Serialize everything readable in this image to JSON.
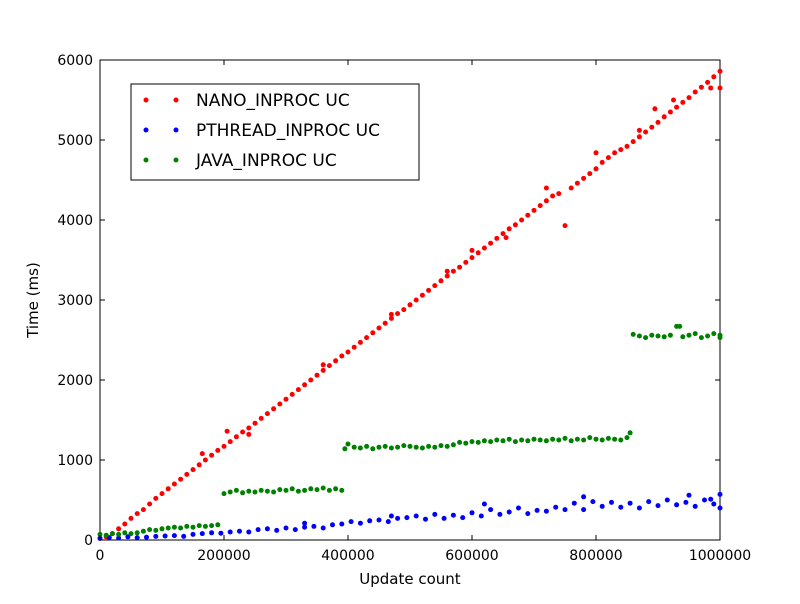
{
  "chart_data": {
    "type": "scatter",
    "xlabel": "Update count",
    "ylabel": "Time (ms)",
    "xlim": [
      0,
      1000000
    ],
    "ylim": [
      0,
      6000
    ],
    "xticks": [
      0,
      200000,
      400000,
      600000,
      800000,
      1000000
    ],
    "yticks": [
      0,
      1000,
      2000,
      3000,
      4000,
      5000,
      6000
    ],
    "xtick_labels": [
      "0",
      "200000",
      "400000",
      "600000",
      "800000",
      "1000000"
    ],
    "ytick_labels": [
      "0",
      "1000",
      "2000",
      "3000",
      "4000",
      "5000",
      "6000"
    ],
    "grid": false,
    "legend_position": "upper-left",
    "series": [
      {
        "name": "NANO_INPROC UC",
        "color": "#ff0000",
        "points": [
          [
            0,
            20
          ],
          [
            10000,
            40
          ],
          [
            20000,
            80
          ],
          [
            30000,
            140
          ],
          [
            40000,
            200
          ],
          [
            50000,
            270
          ],
          [
            60000,
            330
          ],
          [
            70000,
            380
          ],
          [
            80000,
            450
          ],
          [
            90000,
            520
          ],
          [
            100000,
            580
          ],
          [
            110000,
            640
          ],
          [
            120000,
            700
          ],
          [
            130000,
            760
          ],
          [
            140000,
            820
          ],
          [
            150000,
            880
          ],
          [
            160000,
            940
          ],
          [
            170000,
            1000
          ],
          [
            180000,
            1060
          ],
          [
            190000,
            1120
          ],
          [
            200000,
            1170
          ],
          [
            210000,
            1230
          ],
          [
            220000,
            1290
          ],
          [
            230000,
            1350
          ],
          [
            240000,
            1400
          ],
          [
            250000,
            1460
          ],
          [
            260000,
            1520
          ],
          [
            270000,
            1580
          ],
          [
            280000,
            1640
          ],
          [
            290000,
            1700
          ],
          [
            300000,
            1760
          ],
          [
            310000,
            1820
          ],
          [
            320000,
            1880
          ],
          [
            330000,
            1940
          ],
          [
            340000,
            2000
          ],
          [
            350000,
            2060
          ],
          [
            360000,
            2120
          ],
          [
            370000,
            2180
          ],
          [
            380000,
            2240
          ],
          [
            390000,
            2300
          ],
          [
            400000,
            2350
          ],
          [
            410000,
            2410
          ],
          [
            420000,
            2470
          ],
          [
            430000,
            2530
          ],
          [
            440000,
            2590
          ],
          [
            450000,
            2650
          ],
          [
            460000,
            2710
          ],
          [
            470000,
            2770
          ],
          [
            480000,
            2830
          ],
          [
            490000,
            2880
          ],
          [
            500000,
            2940
          ],
          [
            510000,
            3000
          ],
          [
            520000,
            3060
          ],
          [
            530000,
            3120
          ],
          [
            540000,
            3180
          ],
          [
            550000,
            3240
          ],
          [
            560000,
            3300
          ],
          [
            570000,
            3360
          ],
          [
            580000,
            3410
          ],
          [
            590000,
            3470
          ],
          [
            600000,
            3530
          ],
          [
            610000,
            3590
          ],
          [
            620000,
            3650
          ],
          [
            630000,
            3710
          ],
          [
            640000,
            3770
          ],
          [
            650000,
            3830
          ],
          [
            660000,
            3890
          ],
          [
            670000,
            3940
          ],
          [
            680000,
            4000
          ],
          [
            690000,
            4060
          ],
          [
            700000,
            4120
          ],
          [
            710000,
            4180
          ],
          [
            720000,
            4240
          ],
          [
            730000,
            4300
          ],
          [
            740000,
            4330
          ],
          [
            750000,
            3930
          ],
          [
            760000,
            4400
          ],
          [
            770000,
            4460
          ],
          [
            780000,
            4520
          ],
          [
            790000,
            4580
          ],
          [
            800000,
            4640
          ],
          [
            810000,
            4720
          ],
          [
            820000,
            4780
          ],
          [
            830000,
            4840
          ],
          [
            840000,
            4880
          ],
          [
            850000,
            4920
          ],
          [
            860000,
            4980
          ],
          [
            870000,
            5040
          ],
          [
            880000,
            5100
          ],
          [
            890000,
            5160
          ],
          [
            900000,
            5220
          ],
          [
            910000,
            5290
          ],
          [
            920000,
            5350
          ],
          [
            930000,
            5410
          ],
          [
            940000,
            5470
          ],
          [
            950000,
            5530
          ],
          [
            960000,
            5600
          ],
          [
            970000,
            5660
          ],
          [
            980000,
            5720
          ],
          [
            990000,
            5790
          ],
          [
            1000000,
            5860
          ],
          [
            1000000,
            5650
          ],
          [
            985000,
            5650
          ],
          [
            240000,
            1320
          ],
          [
            165000,
            1080
          ],
          [
            205000,
            1360
          ],
          [
            360000,
            2190
          ],
          [
            470000,
            2820
          ],
          [
            560000,
            3360
          ],
          [
            600000,
            3620
          ],
          [
            655000,
            3780
          ],
          [
            720000,
            4400
          ],
          [
            800000,
            4840
          ],
          [
            870000,
            5120
          ],
          [
            895000,
            5390
          ],
          [
            925000,
            5500
          ]
        ]
      },
      {
        "name": "PTHREAD_INPROC UC",
        "color": "#0000ff",
        "points": [
          [
            0,
            20
          ],
          [
            15000,
            30
          ],
          [
            30000,
            25
          ],
          [
            45000,
            40
          ],
          [
            60000,
            30
          ],
          [
            75000,
            35
          ],
          [
            90000,
            45
          ],
          [
            105000,
            50
          ],
          [
            120000,
            55
          ],
          [
            135000,
            45
          ],
          [
            150000,
            70
          ],
          [
            165000,
            80
          ],
          [
            180000,
            90
          ],
          [
            195000,
            85
          ],
          [
            210000,
            100
          ],
          [
            225000,
            110
          ],
          [
            240000,
            100
          ],
          [
            255000,
            130
          ],
          [
            270000,
            140
          ],
          [
            285000,
            120
          ],
          [
            300000,
            150
          ],
          [
            315000,
            130
          ],
          [
            330000,
            160
          ],
          [
            345000,
            170
          ],
          [
            360000,
            150
          ],
          [
            375000,
            190
          ],
          [
            390000,
            200
          ],
          [
            405000,
            230
          ],
          [
            420000,
            210
          ],
          [
            435000,
            240
          ],
          [
            450000,
            250
          ],
          [
            465000,
            230
          ],
          [
            480000,
            270
          ],
          [
            495000,
            280
          ],
          [
            510000,
            300
          ],
          [
            525000,
            260
          ],
          [
            540000,
            320
          ],
          [
            555000,
            270
          ],
          [
            570000,
            310
          ],
          [
            585000,
            280
          ],
          [
            600000,
            340
          ],
          [
            615000,
            300
          ],
          [
            630000,
            380
          ],
          [
            645000,
            320
          ],
          [
            660000,
            350
          ],
          [
            675000,
            400
          ],
          [
            690000,
            330
          ],
          [
            705000,
            370
          ],
          [
            720000,
            360
          ],
          [
            735000,
            410
          ],
          [
            750000,
            380
          ],
          [
            765000,
            460
          ],
          [
            780000,
            380
          ],
          [
            795000,
            480
          ],
          [
            810000,
            420
          ],
          [
            825000,
            470
          ],
          [
            840000,
            410
          ],
          [
            855000,
            460
          ],
          [
            870000,
            400
          ],
          [
            885000,
            480
          ],
          [
            900000,
            430
          ],
          [
            915000,
            500
          ],
          [
            930000,
            440
          ],
          [
            945000,
            470
          ],
          [
            960000,
            420
          ],
          [
            975000,
            500
          ],
          [
            990000,
            450
          ],
          [
            1000000,
            570
          ],
          [
            1000000,
            400
          ],
          [
            985000,
            510
          ],
          [
            950000,
            560
          ],
          [
            780000,
            540
          ],
          [
            620000,
            450
          ],
          [
            470000,
            300
          ],
          [
            330000,
            210
          ]
        ]
      },
      {
        "name": "JAVA_INPROC UC",
        "color": "#008000",
        "points": [
          [
            0,
            70
          ],
          [
            10000,
            60
          ],
          [
            20000,
            80
          ],
          [
            30000,
            70
          ],
          [
            40000,
            90
          ],
          [
            50000,
            80
          ],
          [
            60000,
            90
          ],
          [
            70000,
            110
          ],
          [
            80000,
            130
          ],
          [
            90000,
            120
          ],
          [
            100000,
            140
          ],
          [
            110000,
            150
          ],
          [
            120000,
            160
          ],
          [
            130000,
            150
          ],
          [
            140000,
            170
          ],
          [
            150000,
            160
          ],
          [
            160000,
            180
          ],
          [
            170000,
            170
          ],
          [
            180000,
            180
          ],
          [
            190000,
            190
          ],
          [
            200000,
            580
          ],
          [
            210000,
            600
          ],
          [
            220000,
            620
          ],
          [
            230000,
            590
          ],
          [
            240000,
            610
          ],
          [
            250000,
            600
          ],
          [
            260000,
            620
          ],
          [
            270000,
            610
          ],
          [
            280000,
            600
          ],
          [
            290000,
            630
          ],
          [
            300000,
            620
          ],
          [
            310000,
            640
          ],
          [
            320000,
            610
          ],
          [
            330000,
            620
          ],
          [
            340000,
            640
          ],
          [
            350000,
            630
          ],
          [
            360000,
            650
          ],
          [
            370000,
            620
          ],
          [
            380000,
            640
          ],
          [
            390000,
            620
          ],
          [
            395000,
            1140
          ],
          [
            400000,
            1200
          ],
          [
            410000,
            1160
          ],
          [
            420000,
            1150
          ],
          [
            430000,
            1170
          ],
          [
            440000,
            1140
          ],
          [
            450000,
            1160
          ],
          [
            460000,
            1170
          ],
          [
            470000,
            1150
          ],
          [
            480000,
            1160
          ],
          [
            490000,
            1180
          ],
          [
            500000,
            1170
          ],
          [
            510000,
            1160
          ],
          [
            520000,
            1150
          ],
          [
            530000,
            1170
          ],
          [
            540000,
            1160
          ],
          [
            550000,
            1180
          ],
          [
            560000,
            1170
          ],
          [
            570000,
            1190
          ],
          [
            580000,
            1220
          ],
          [
            590000,
            1210
          ],
          [
            600000,
            1230
          ],
          [
            610000,
            1220
          ],
          [
            620000,
            1240
          ],
          [
            630000,
            1230
          ],
          [
            640000,
            1250
          ],
          [
            650000,
            1240
          ],
          [
            660000,
            1260
          ],
          [
            670000,
            1230
          ],
          [
            680000,
            1250
          ],
          [
            690000,
            1240
          ],
          [
            700000,
            1260
          ],
          [
            710000,
            1250
          ],
          [
            720000,
            1240
          ],
          [
            730000,
            1260
          ],
          [
            740000,
            1250
          ],
          [
            750000,
            1270
          ],
          [
            760000,
            1240
          ],
          [
            770000,
            1260
          ],
          [
            780000,
            1250
          ],
          [
            790000,
            1280
          ],
          [
            800000,
            1260
          ],
          [
            810000,
            1250
          ],
          [
            820000,
            1270
          ],
          [
            830000,
            1260
          ],
          [
            840000,
            1250
          ],
          [
            850000,
            1280
          ],
          [
            855000,
            1340
          ],
          [
            860000,
            2570
          ],
          [
            870000,
            2550
          ],
          [
            880000,
            2530
          ],
          [
            890000,
            2560
          ],
          [
            900000,
            2550
          ],
          [
            910000,
            2540
          ],
          [
            920000,
            2560
          ],
          [
            930000,
            2670
          ],
          [
            940000,
            2540
          ],
          [
            950000,
            2560
          ],
          [
            960000,
            2580
          ],
          [
            970000,
            2530
          ],
          [
            980000,
            2550
          ],
          [
            990000,
            2580
          ],
          [
            1000000,
            2560
          ],
          [
            1000000,
            2530
          ],
          [
            935000,
            2670
          ]
        ]
      }
    ]
  }
}
